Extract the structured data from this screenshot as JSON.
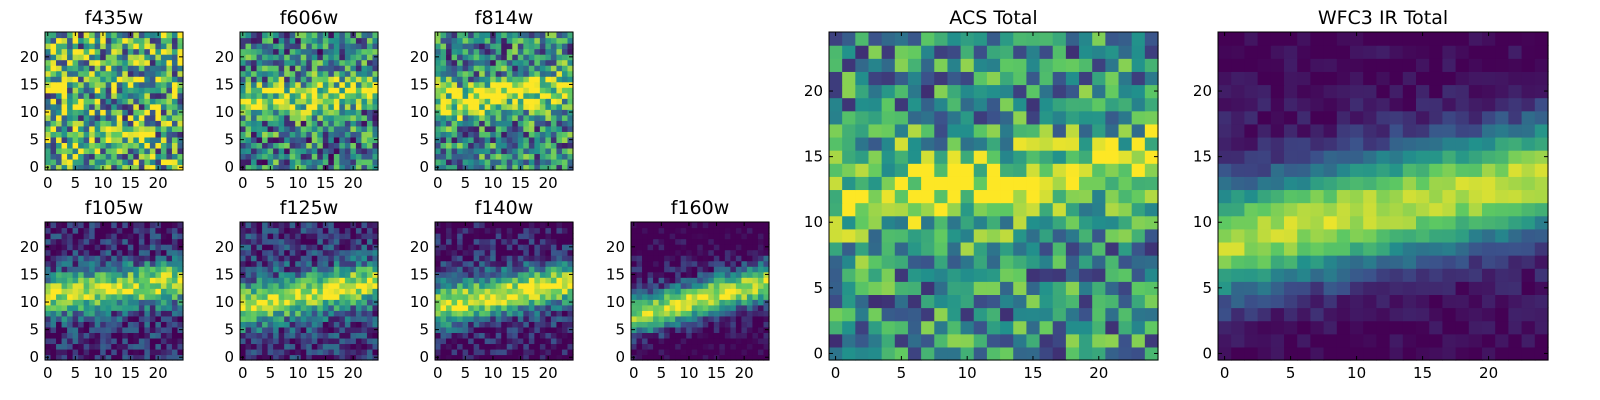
{
  "figure": {
    "colormap": [
      "#440154",
      "#3b528b",
      "#21918c",
      "#5ec962",
      "#fde725"
    ]
  },
  "chart_data": [
    {
      "type": "heatmap",
      "id": "f435w",
      "title": "f435w",
      "grid": [
        25,
        25
      ],
      "xlim": [
        0,
        24
      ],
      "ylim": [
        0,
        24
      ],
      "xticks": [
        0,
        5,
        10,
        15,
        20
      ],
      "yticks": [
        0,
        5,
        10,
        15,
        20
      ],
      "pattern": {
        "band": 0.0,
        "bandSlope": 0,
        "bandAmp": 0,
        "bandWidth": 3.0,
        "base": 0.62,
        "noise": 0.5,
        "edgeDark": 0
      }
    },
    {
      "type": "heatmap",
      "id": "f606w",
      "title": "f606w",
      "grid": [
        25,
        25
      ],
      "xlim": [
        0,
        24
      ],
      "ylim": [
        0,
        24
      ],
      "xticks": [
        0,
        5,
        10,
        15,
        20
      ],
      "yticks": [
        0,
        5,
        10,
        15,
        20
      ],
      "pattern": {
        "band": 13.0,
        "bandSlope": 0.12,
        "bandAmp": 0.45,
        "bandWidth": 3.2,
        "base": 0.42,
        "noise": 0.42,
        "edgeDark": 0
      }
    },
    {
      "type": "heatmap",
      "id": "f814w",
      "title": "f814w",
      "grid": [
        25,
        25
      ],
      "xlim": [
        0,
        24
      ],
      "ylim": [
        0,
        24
      ],
      "xticks": [
        0,
        5,
        10,
        15,
        20
      ],
      "yticks": [
        0,
        5,
        10,
        15,
        20
      ],
      "pattern": {
        "band": 13.0,
        "bandSlope": 0.12,
        "bandAmp": 0.45,
        "bandWidth": 3.2,
        "base": 0.45,
        "noise": 0.4,
        "edgeDark": 0
      }
    },
    {
      "type": "heatmap",
      "id": "f105w",
      "title": "f105w",
      "grid": [
        25,
        25
      ],
      "xlim": [
        0,
        24
      ],
      "ylim": [
        0,
        24
      ],
      "xticks": [
        0,
        5,
        10,
        15,
        20
      ],
      "yticks": [
        0,
        5,
        10,
        15,
        20
      ],
      "pattern": {
        "band": 12.5,
        "bandSlope": 0.12,
        "bandAmp": 0.7,
        "bandWidth": 3.5,
        "base": 0.22,
        "noise": 0.25,
        "edgeDark": 0.15
      }
    },
    {
      "type": "heatmap",
      "id": "f125w",
      "title": "f125w",
      "grid": [
        25,
        25
      ],
      "xlim": [
        0,
        24
      ],
      "ylim": [
        0,
        24
      ],
      "xticks": [
        0,
        5,
        10,
        15,
        20
      ],
      "yticks": [
        0,
        5,
        10,
        15,
        20
      ],
      "pattern": {
        "band": 11.5,
        "bandSlope": 0.2,
        "bandAmp": 0.7,
        "bandWidth": 3.6,
        "base": 0.25,
        "noise": 0.25,
        "edgeDark": 0.15
      }
    },
    {
      "type": "heatmap",
      "id": "f140w",
      "title": "f140w",
      "grid": [
        25,
        25
      ],
      "xlim": [
        0,
        24
      ],
      "ylim": [
        0,
        24
      ],
      "xticks": [
        0,
        5,
        10,
        15,
        20
      ],
      "yticks": [
        0,
        5,
        10,
        15,
        20
      ],
      "pattern": {
        "band": 11.5,
        "bandSlope": 0.2,
        "bandAmp": 0.75,
        "bandWidth": 3.6,
        "base": 0.2,
        "noise": 0.22,
        "edgeDark": 0.2
      }
    },
    {
      "type": "heatmap",
      "id": "f160w",
      "title": "f160w",
      "grid": [
        25,
        25
      ],
      "xlim": [
        0,
        24
      ],
      "ylim": [
        0,
        24
      ],
      "xticks": [
        0,
        5,
        10,
        15,
        20
      ],
      "yticks": [
        0,
        5,
        10,
        15,
        20
      ],
      "pattern": {
        "band": 10.5,
        "bandSlope": 0.28,
        "bandAmp": 0.85,
        "bandWidth": 3.4,
        "base": 0.1,
        "noise": 0.18,
        "edgeDark": 0.2
      }
    },
    {
      "type": "heatmap",
      "id": "acs-total",
      "title": "ACS Total",
      "grid": [
        25,
        25
      ],
      "xlim": [
        0,
        24
      ],
      "ylim": [
        0,
        24
      ],
      "xticks": [
        0,
        5,
        10,
        15,
        20
      ],
      "yticks": [
        0,
        5,
        10,
        15,
        20
      ],
      "pattern": {
        "band": 13.0,
        "bandSlope": 0.12,
        "bandAmp": 0.42,
        "bandWidth": 3.3,
        "base": 0.48,
        "noise": 0.35,
        "edgeDark": 0
      }
    },
    {
      "type": "heatmap",
      "id": "wfc3-ir-total",
      "title": "WFC3 IR Total",
      "grid": [
        25,
        25
      ],
      "xlim": [
        0,
        24
      ],
      "ylim": [
        0,
        24
      ],
      "xticks": [
        0,
        5,
        10,
        15,
        20
      ],
      "yticks": [
        0,
        5,
        10,
        15,
        20
      ],
      "pattern": {
        "band": 11.0,
        "bandSlope": 0.22,
        "bandAmp": 0.8,
        "bandWidth": 4.0,
        "base": 0.12,
        "noise": 0.08,
        "edgeDark": 0.12
      }
    }
  ]
}
